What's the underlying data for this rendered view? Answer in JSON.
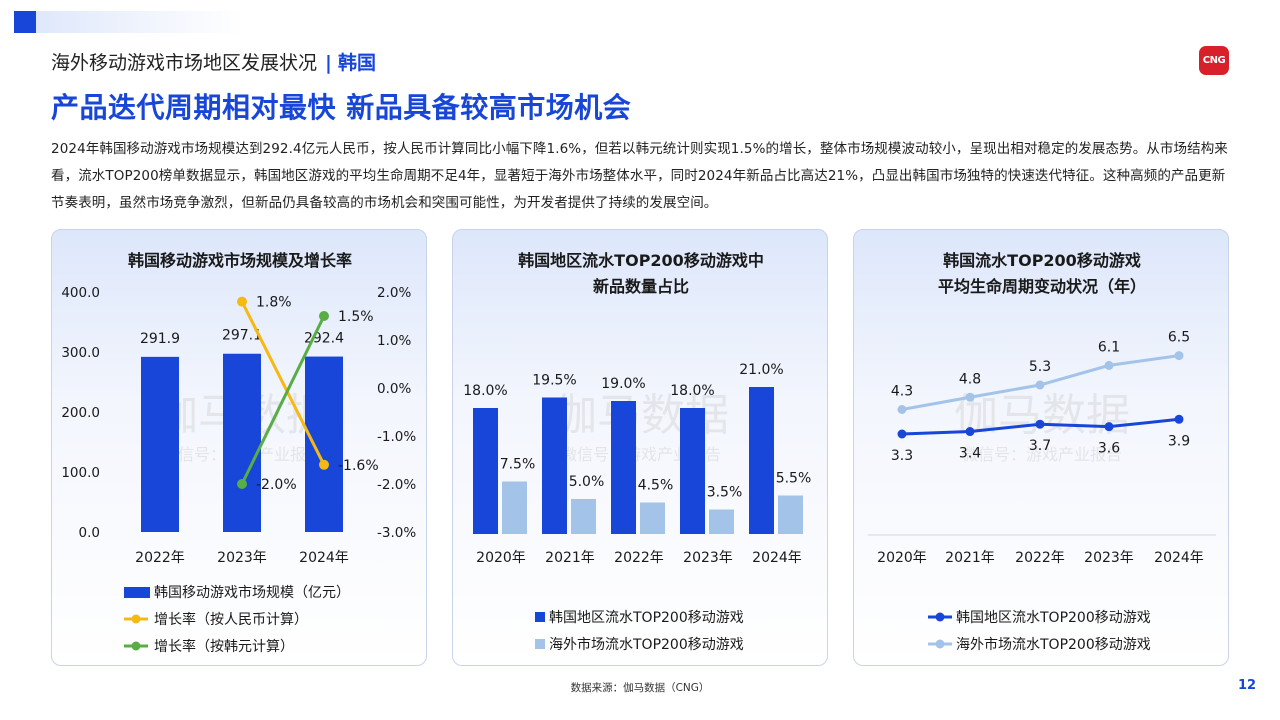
{
  "header": {
    "section_title": "海外移动游戏市场地区发展状况",
    "separator": "|",
    "region": "韩国",
    "logo_text": "CNG",
    "headline": "产品迭代周期相对最快 新品具备较高市场机会",
    "body": "2024年韩国移动游戏市场规模达到292.4亿元人民币，按人民币计算同比小幅下降1.6%，但若以韩元统计则实现1.5%的增长，整体市场规模波动较小，呈现出相对稳定的发展态势。从市场结构来看，流水TOP200榜单数据显示，韩国地区游戏的平均生命周期不足4年，显著短于海外市场整体水平，同时2024年新品占比高达21%，凸显出韩国市场独特的快速迭代特征。这种高频的产品更新节奏表明，虽然市场竞争激烈，但新品仍具备较高的市场机会和突围可能性，为开发者提供了持续的发展空间。"
  },
  "watermark": {
    "main": "伽马数据",
    "sub": "微信号：游戏产业报告"
  },
  "colors": {
    "accent": "#1746d8",
    "bar_primary": "#1746d8",
    "bar_secondary": "#a3c4e8",
    "line_yellow": "#f5b914",
    "line_green": "#58ad45",
    "line_light": "#a3c4e8"
  },
  "chart_data": [
    {
      "type": "bar",
      "title": "韩国移动游戏市场规模及增长率",
      "categories": [
        "2022年",
        "2023年",
        "2024年"
      ],
      "ylim": [
        0,
        400
      ],
      "yticks": [
        "0.0",
        "100.0",
        "200.0",
        "300.0",
        "400.0"
      ],
      "y2lim": [
        -3,
        2
      ],
      "y2ticks": [
        "-3.0%",
        "-2.0%",
        "-1.0%",
        "0.0%",
        "1.0%",
        "2.0%"
      ],
      "series": [
        {
          "name": "韩国移动游戏市场规模（亿元）",
          "type": "bar",
          "values": [
            291.9,
            297.1,
            292.4
          ],
          "labels": [
            "291.9",
            "297.1",
            "292.4"
          ]
        },
        {
          "name": "增长率（按人民币计算）",
          "type": "line",
          "axis": "right",
          "x": [
            "2023年",
            "2024年"
          ],
          "values": [
            1.8,
            -1.6
          ],
          "labels": [
            "1.8%",
            "-1.6%"
          ]
        },
        {
          "name": "增长率（按韩元计算）",
          "type": "line",
          "axis": "right",
          "x": [
            "2023年",
            "2024年"
          ],
          "values": [
            -2.0,
            1.5
          ],
          "labels": [
            "-2.0%",
            "1.5%"
          ]
        }
      ]
    },
    {
      "type": "bar",
      "title": "韩国地区流水TOP200移动游戏中",
      "title2": "新品数量占比",
      "categories": [
        "2020年",
        "2021年",
        "2022年",
        "2023年",
        "2024年"
      ],
      "ylim": [
        0,
        24
      ],
      "series": [
        {
          "name": "韩国地区流水TOP200移动游戏",
          "values": [
            18.0,
            19.5,
            19.0,
            18.0,
            21.0
          ],
          "labels": [
            "18.0%",
            "19.5%",
            "19.0%",
            "18.0%",
            "21.0%"
          ]
        },
        {
          "name": "海外市场流水TOP200移动游戏",
          "values": [
            7.5,
            5.0,
            4.5,
            3.5,
            5.5
          ],
          "labels": [
            "7.5%",
            "5.0%",
            "4.5%",
            "3.5%",
            "5.5%"
          ]
        }
      ]
    },
    {
      "type": "line",
      "title": "韩国流水TOP200移动游戏",
      "title2": "平均生命周期变动状况（年）",
      "categories": [
        "2020年",
        "2021年",
        "2022年",
        "2023年",
        "2024年"
      ],
      "ylim": [
        0,
        8
      ],
      "series": [
        {
          "name": "韩国地区流水TOP200移动游戏",
          "values": [
            3.3,
            3.4,
            3.7,
            3.6,
            3.9
          ],
          "labels": [
            "3.3",
            "3.4",
            "3.7",
            "3.6",
            "3.9"
          ]
        },
        {
          "name": "海外市场流水TOP200移动游戏",
          "values": [
            4.3,
            4.8,
            5.3,
            6.1,
            6.5
          ],
          "labels": [
            "4.3",
            "4.8",
            "5.3",
            "6.1",
            "6.5"
          ]
        }
      ]
    }
  ],
  "footer": {
    "source": "数据来源：伽马数据（CNG）",
    "page": "12"
  }
}
